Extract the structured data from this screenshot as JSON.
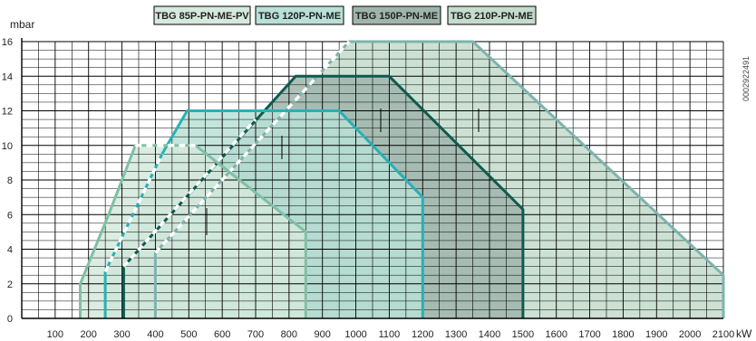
{
  "chart_data": {
    "type": "area",
    "ylabel": "mbar",
    "xlabel": "kW",
    "xlim": [
      0,
      2100
    ],
    "ylim": [
      0,
      16
    ],
    "x_ticks": [
      100,
      200,
      300,
      400,
      500,
      600,
      700,
      800,
      900,
      1000,
      1100,
      1200,
      1300,
      1400,
      1500,
      1600,
      1700,
      1800,
      1900,
      2000,
      2100
    ],
    "y_ticks": [
      0,
      2,
      4,
      6,
      8,
      10,
      12,
      14,
      16
    ],
    "grid": true,
    "legend_position": "top",
    "code": "0002922491",
    "series": [
      {
        "name": "TBG 85P-PN-ME-PV",
        "color": "#7fc0a5",
        "fill": "#d5e9dd",
        "points": [
          [
            175,
            0
          ],
          [
            175,
            2
          ],
          [
            260,
            6
          ],
          [
            340,
            10
          ],
          [
            520,
            10
          ],
          [
            850,
            5
          ],
          [
            850,
            0
          ]
        ],
        "dashed_segment": [
          [
            340,
            10
          ],
          [
            520,
            10
          ]
        ]
      },
      {
        "name": "TBG 120P-PN-ME",
        "color": "#2ab0b5",
        "fill": "#b8e0d6",
        "points": [
          [
            250,
            0
          ],
          [
            250,
            2.7
          ],
          [
            420,
            9.5
          ],
          [
            495,
            12
          ],
          [
            950,
            12
          ],
          [
            1200,
            7
          ],
          [
            1200,
            0
          ]
        ],
        "dashed_segment": [
          [
            250,
            2.7
          ],
          [
            420,
            9.5
          ]
        ]
      },
      {
        "name": "TBG 150P-PN-ME",
        "color": "#0e5a4e",
        "fill": "#9fb5ab",
        "points": [
          [
            305,
            0
          ],
          [
            305,
            3
          ],
          [
            820,
            14
          ],
          [
            1100,
            14
          ],
          [
            1500,
            6.3
          ],
          [
            1500,
            0
          ]
        ],
        "dashed_segment": [
          [
            305,
            3
          ],
          [
            700,
            11.5
          ]
        ]
      },
      {
        "name": "TBG 210P-PN-ME",
        "color": "#7fb3ad",
        "fill": "#c3dccc",
        "points": [
          [
            400,
            0
          ],
          [
            400,
            3.8
          ],
          [
            980,
            16
          ],
          [
            1350,
            16
          ],
          [
            2100,
            2.5
          ],
          [
            2100,
            0
          ]
        ],
        "dashed_segment": [
          [
            400,
            3.8
          ],
          [
            980,
            16
          ]
        ]
      }
    ]
  }
}
